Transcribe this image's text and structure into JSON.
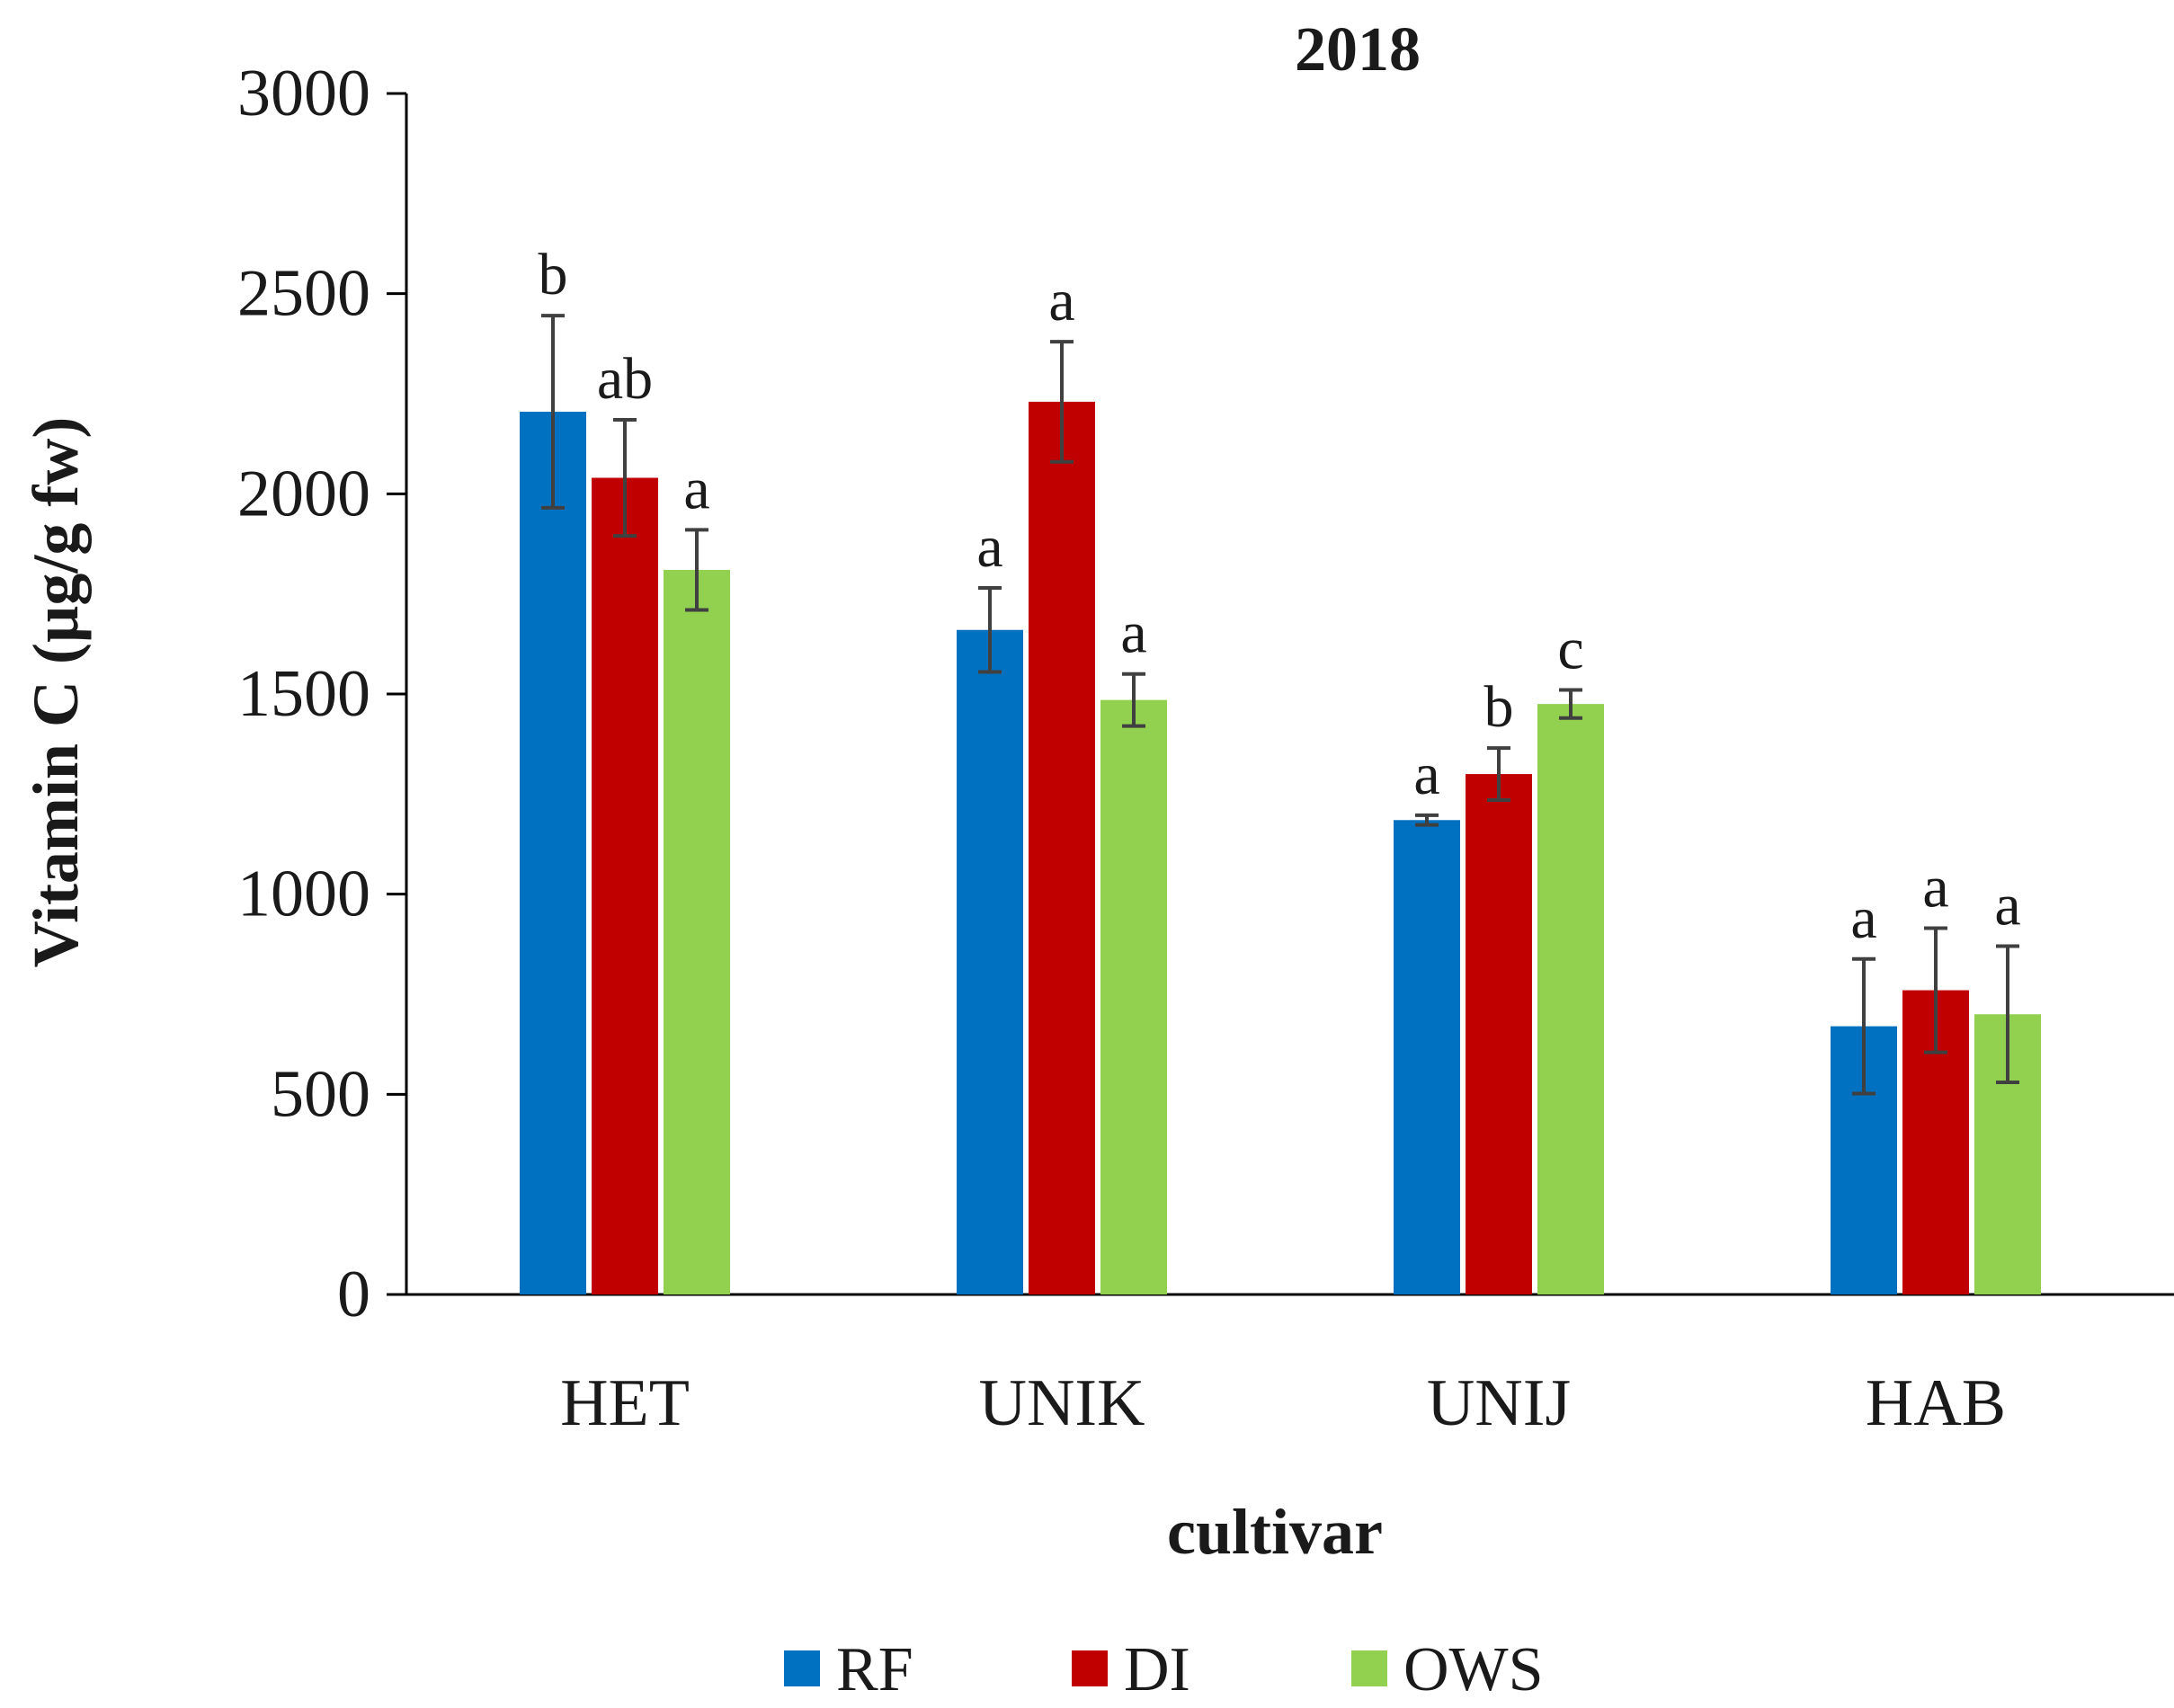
{
  "chart_data": {
    "type": "bar",
    "title": "2018",
    "xlabel": "cultivar",
    "ylabel": "Vitamin C (µg/g fw)",
    "ylim": [
      0,
      3000
    ],
    "yticks": [
      0,
      500,
      1000,
      1500,
      2000,
      2500,
      3000
    ],
    "grid": false,
    "legend_position": "bottom-center",
    "categories": [
      "HET",
      "UNIK",
      "UNIJ",
      "HAB"
    ],
    "series": [
      {
        "name": "RF",
        "color": "#0070C0",
        "values": [
          2205,
          1660,
          1185,
          670
        ],
        "errors": [
          240,
          105,
          12,
          168
        ],
        "letters": [
          "b",
          "a",
          "a",
          "a"
        ]
      },
      {
        "name": "DI",
        "color": "#C00000",
        "values": [
          2040,
          2230,
          1300,
          760
        ],
        "errors": [
          145,
          150,
          65,
          155
        ],
        "letters": [
          "ab",
          "a",
          "b",
          "a"
        ]
      },
      {
        "name": "OWS",
        "color": "#92D050",
        "values": [
          1810,
          1485,
          1475,
          700
        ],
        "errors": [
          100,
          65,
          35,
          170
        ],
        "letters": [
          "a",
          "a",
          "c",
          "a"
        ]
      }
    ]
  }
}
